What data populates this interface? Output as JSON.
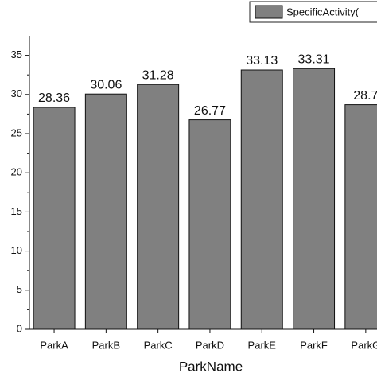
{
  "chart_data": {
    "type": "bar",
    "legend_entry": "SpecificActivity(",
    "x_label": "ParkName",
    "categories": [
      "ParkA",
      "ParkB",
      "ParkC",
      "ParkD",
      "ParkE",
      "ParkF",
      "ParkG"
    ],
    "values": [
      28.36,
      30.06,
      31.28,
      26.77,
      33.13,
      33.31,
      28.7
    ],
    "color": "#808080",
    "ylim": [
      0,
      37.5
    ],
    "yticks": [
      0,
      5,
      10,
      15,
      20,
      25,
      30,
      35
    ]
  }
}
